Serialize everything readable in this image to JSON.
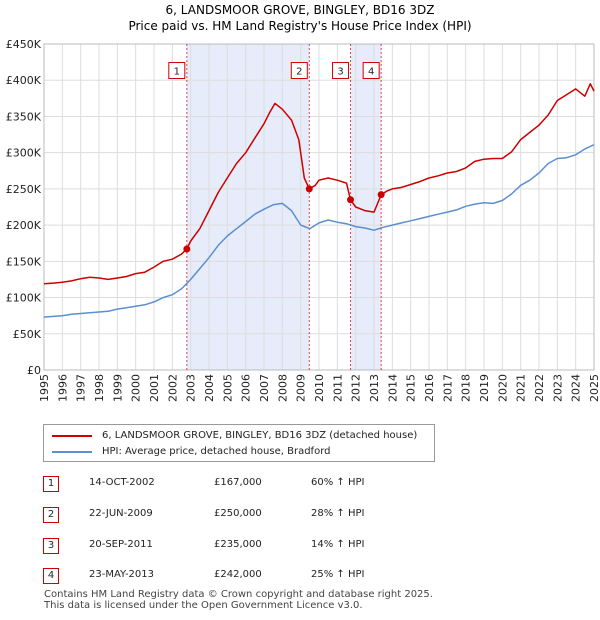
{
  "chart_data": {
    "type": "line",
    "title": "6, LANDSMOOR GROVE, BINGLEY, BD16 3DZ",
    "subtitle": "Price paid vs. HM Land Registry's House Price Index (HPI)",
    "xlim": [
      1995,
      2025
    ],
    "ylim": [
      0,
      450000
    ],
    "x_ticks": [
      "1995",
      "1996",
      "1997",
      "1998",
      "1999",
      "2000",
      "2001",
      "2002",
      "2003",
      "2004",
      "2005",
      "2006",
      "2007",
      "2008",
      "2009",
      "2010",
      "2011",
      "2012",
      "2013",
      "2014",
      "2015",
      "2016",
      "2017",
      "2018",
      "2019",
      "2020",
      "2021",
      "2022",
      "2023",
      "2024",
      "2025"
    ],
    "y_ticks": [
      {
        "value": 0,
        "label": "£0"
      },
      {
        "value": 50000,
        "label": "£50K"
      },
      {
        "value": 100000,
        "label": "£100K"
      },
      {
        "value": 150000,
        "label": "£150K"
      },
      {
        "value": 200000,
        "label": "£200K"
      },
      {
        "value": 250000,
        "label": "£250K"
      },
      {
        "value": 300000,
        "label": "£300K"
      },
      {
        "value": 350000,
        "label": "£350K"
      },
      {
        "value": 400000,
        "label": "£400K"
      },
      {
        "value": 450000,
        "label": "£450K"
      }
    ],
    "shaded_periods": [
      [
        2002.79,
        2009.47
      ],
      [
        2011.72,
        2013.39
      ]
    ],
    "series": [
      {
        "name": "6, LANDSMOOR GROVE, BINGLEY, BD16 3DZ (detached house)",
        "color": "#cc0000",
        "x": [
          1995,
          1995.5,
          1996,
          1996.5,
          1997,
          1997.5,
          1998,
          1998.5,
          1999,
          1999.5,
          2000,
          2000.5,
          2001,
          2001.5,
          2002,
          2002.5,
          2002.79,
          2003,
          2003.5,
          2004,
          2004.5,
          2005,
          2005.5,
          2006,
          2006.5,
          2007,
          2007.3,
          2007.6,
          2008,
          2008.5,
          2008.9,
          2009.2,
          2009.47,
          2009.8,
          2010,
          2010.5,
          2011,
          2011.5,
          2011.72,
          2012,
          2012.5,
          2013,
          2013.39,
          2013.7,
          2014,
          2014.5,
          2015,
          2015.5,
          2016,
          2016.5,
          2017,
          2017.5,
          2018,
          2018.5,
          2019,
          2019.5,
          2020,
          2020.5,
          2021,
          2021.5,
          2022,
          2022.5,
          2023,
          2023.5,
          2024,
          2024.5,
          2024.8,
          2025
        ],
        "values": [
          119000,
          120000,
          121000,
          123000,
          126000,
          128000,
          127000,
          125000,
          127000,
          129000,
          133000,
          135000,
          142000,
          150000,
          153000,
          160000,
          167000,
          178000,
          195000,
          220000,
          245000,
          265000,
          285000,
          300000,
          320000,
          340000,
          355000,
          368000,
          360000,
          345000,
          318000,
          265000,
          250000,
          255000,
          262000,
          265000,
          262000,
          258000,
          235000,
          225000,
          220000,
          218000,
          242000,
          247000,
          250000,
          252000,
          256000,
          260000,
          265000,
          268000,
          272000,
          274000,
          279000,
          288000,
          291000,
          292000,
          292000,
          301000,
          318000,
          328000,
          338000,
          352000,
          372000,
          380000,
          388000,
          378000,
          395000,
          385000
        ]
      },
      {
        "name": "HPI: Average price, detached house, Bradford",
        "color": "#5b8fd0",
        "x": [
          1995,
          1995.5,
          1996,
          1996.5,
          1997,
          1997.5,
          1998,
          1998.5,
          1999,
          1999.5,
          2000,
          2000.5,
          2001,
          2001.5,
          2002,
          2002.5,
          2003,
          2003.5,
          2004,
          2004.5,
          2005,
          2005.5,
          2006,
          2006.5,
          2007,
          2007.5,
          2008,
          2008.5,
          2009,
          2009.5,
          2010,
          2010.5,
          2011,
          2011.5,
          2012,
          2012.5,
          2013,
          2013.5,
          2014,
          2014.5,
          2015,
          2015.5,
          2016,
          2016.5,
          2017,
          2017.5,
          2018,
          2018.5,
          2019,
          2019.5,
          2020,
          2020.5,
          2021,
          2021.5,
          2022,
          2022.5,
          2023,
          2023.5,
          2024,
          2024.5,
          2025
        ],
        "values": [
          73000,
          74000,
          75000,
          77000,
          78000,
          79000,
          80000,
          81000,
          84000,
          86000,
          88000,
          90000,
          94000,
          100000,
          104000,
          112000,
          125000,
          140000,
          155000,
          172000,
          185000,
          195000,
          205000,
          215000,
          222000,
          228000,
          230000,
          220000,
          200000,
          195000,
          203000,
          207000,
          204000,
          202000,
          198000,
          196000,
          193000,
          197000,
          200000,
          203000,
          206000,
          209000,
          212000,
          215000,
          218000,
          221000,
          226000,
          229000,
          231000,
          230000,
          234000,
          243000,
          255000,
          262000,
          272000,
          285000,
          292000,
          293000,
          297000,
          305000,
          311000
        ]
      }
    ],
    "sales": [
      {
        "num": "1",
        "year": 2002.79,
        "value": 167000
      },
      {
        "num": "2",
        "year": 2009.47,
        "value": 250000
      },
      {
        "num": "3",
        "year": 2011.72,
        "value": 235000
      },
      {
        "num": "4",
        "year": 2013.39,
        "value": 242000
      }
    ],
    "marker_label_value": 412000
  },
  "legend": [
    {
      "label": "6, LANDSMOOR GROVE, BINGLEY, BD16 3DZ (detached house)",
      "color": "#cc0000"
    },
    {
      "label": "HPI: Average price, detached house, Bradford",
      "color": "#5b8fd0"
    }
  ],
  "table": [
    {
      "num": "1",
      "date": "14-OCT-2002",
      "price": "£167,000",
      "hpi": "60% ↑ HPI"
    },
    {
      "num": "2",
      "date": "22-JUN-2009",
      "price": "£250,000",
      "hpi": "28% ↑ HPI"
    },
    {
      "num": "3",
      "date": "20-SEP-2011",
      "price": "£235,000",
      "hpi": "14% ↑ HPI"
    },
    {
      "num": "4",
      "date": "23-MAY-2013",
      "price": "£242,000",
      "hpi": "25% ↑ HPI"
    }
  ],
  "footer": {
    "line1": "Contains HM Land Registry data © Crown copyright and database right 2025.",
    "line2": "This data is licensed under the Open Government Licence v3.0."
  }
}
